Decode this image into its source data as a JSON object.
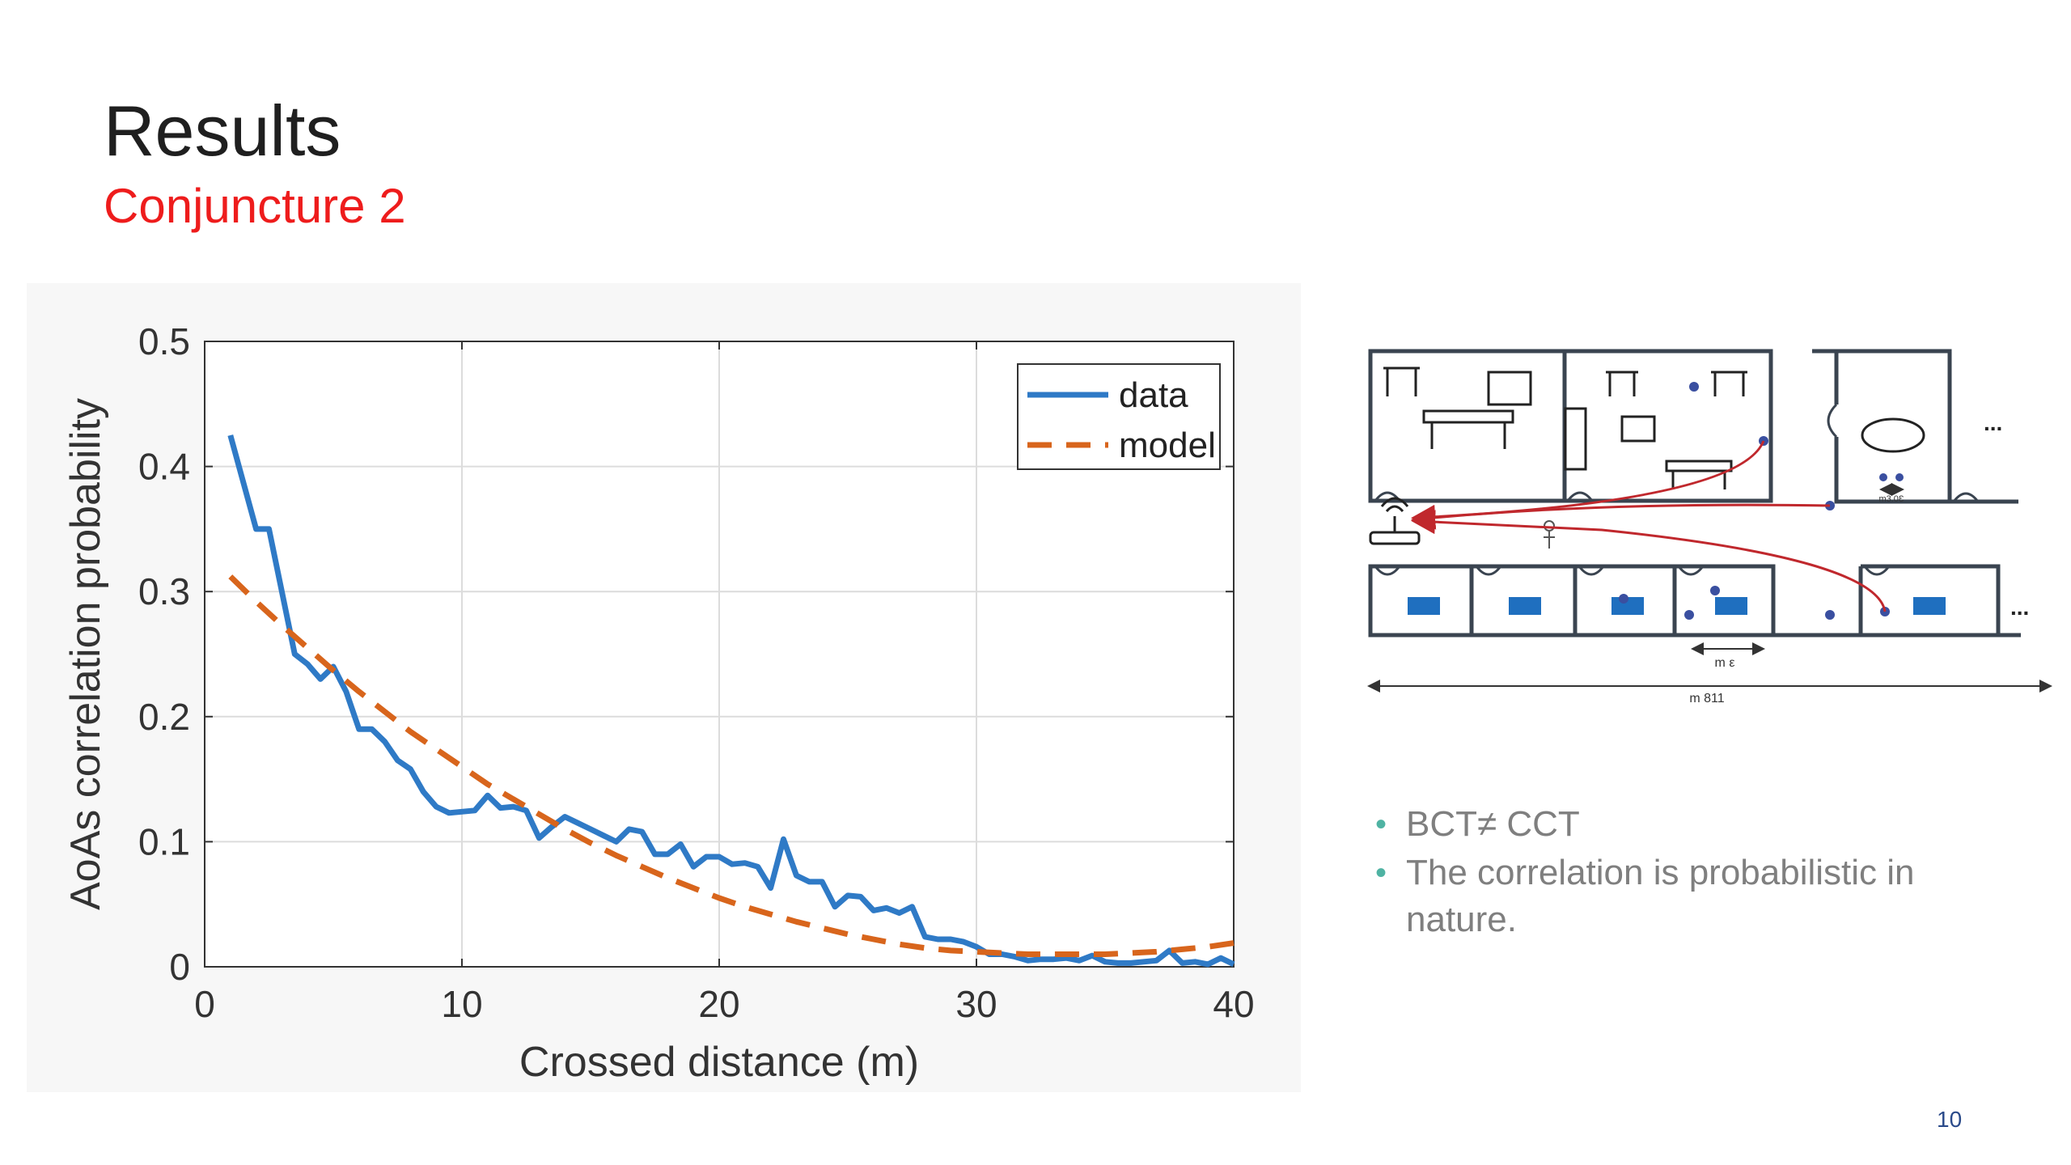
{
  "slide": {
    "title": "Results",
    "subtitle": "Conjuncture 2",
    "subtitle_color": "#ee1c1c",
    "page_number": "10",
    "page_number_color": "#2a4a8a"
  },
  "bullets": [
    "BCT≠ CCT",
    "The correlation is probabilistic in nature."
  ],
  "bullet_color": "#4fb3a3",
  "diagram": {
    "dim_small": "m ε",
    "dim_total": "m 811",
    "dim_room": "m3.0Ɛ",
    "ellipsis_top": "...",
    "ellipsis_bottom": "..."
  },
  "chart_data": {
    "type": "line",
    "xlabel": "Crossed distance (m)",
    "ylabel": "AoAs correlation probability",
    "xlim": [
      0,
      40
    ],
    "ylim": [
      0,
      0.5
    ],
    "xticks": [
      "0",
      "10",
      "20",
      "30",
      "40"
    ],
    "yticks": [
      "0",
      "0.1",
      "0.2",
      "0.3",
      "0.4",
      "0.5"
    ],
    "grid": true,
    "legend_position": "top-right",
    "series": [
      {
        "name": "data",
        "color": "#2f7ac6",
        "style": "solid",
        "x": [
          1,
          2,
          2.5,
          3,
          3.5,
          4,
          4.5,
          5,
          5.5,
          6,
          6.5,
          7,
          7.5,
          8,
          8.5,
          9,
          9.5,
          10,
          10.5,
          11,
          11.5,
          12,
          12.5,
          13,
          13.5,
          14,
          14.5,
          15,
          15.5,
          16,
          16.5,
          17,
          17.5,
          18,
          18.5,
          19,
          19.5,
          20,
          20.5,
          21,
          21.5,
          22,
          22.5,
          23,
          23.5,
          24,
          24.5,
          25,
          25.5,
          26,
          26.5,
          27,
          27.5,
          28,
          28.5,
          29,
          29.5,
          30,
          30.5,
          31,
          31.5,
          32,
          32.5,
          33,
          33.5,
          34,
          34.5,
          35,
          35.5,
          36,
          36.5,
          37,
          37.5,
          38,
          38.5,
          39,
          39.5,
          40
        ],
        "y": [
          0.425,
          0.35,
          0.35,
          0.3,
          0.25,
          0.242,
          0.23,
          0.24,
          0.22,
          0.19,
          0.19,
          0.18,
          0.165,
          0.158,
          0.14,
          0.128,
          0.123,
          0.124,
          0.125,
          0.137,
          0.127,
          0.128,
          0.125,
          0.103,
          0.112,
          0.12,
          0.115,
          0.11,
          0.105,
          0.1,
          0.11,
          0.108,
          0.09,
          0.09,
          0.098,
          0.08,
          0.088,
          0.088,
          0.082,
          0.083,
          0.08,
          0.063,
          0.102,
          0.073,
          0.068,
          0.068,
          0.048,
          0.057,
          0.056,
          0.045,
          0.047,
          0.043,
          0.048,
          0.024,
          0.022,
          0.022,
          0.02,
          0.016,
          0.01,
          0.01,
          0.008,
          0.005,
          0.006,
          0.006,
          0.007,
          0.005,
          0.009,
          0.004,
          0.003,
          0.003,
          0.004,
          0.005,
          0.013,
          0.003,
          0.004,
          0.002,
          0.007,
          0.002
        ],
        "y_note_unused": null
      },
      {
        "name": "model",
        "color": "#d8651c",
        "style": "dashed",
        "x": [
          1,
          2,
          3,
          4,
          5,
          6,
          7,
          8,
          9,
          10,
          11,
          12,
          13,
          14,
          15,
          16,
          17,
          18,
          19,
          20,
          21,
          22,
          23,
          24,
          25,
          26,
          27,
          28,
          29,
          30,
          31,
          32,
          33,
          34,
          35,
          36,
          37,
          38,
          39,
          40
        ],
        "y": [
          0.312,
          0.292,
          0.273,
          0.255,
          0.237,
          0.22,
          0.204,
          0.188,
          0.174,
          0.16,
          0.146,
          0.134,
          0.122,
          0.11,
          0.099,
          0.089,
          0.08,
          0.071,
          0.063,
          0.055,
          0.048,
          0.042,
          0.036,
          0.031,
          0.026,
          0.022,
          0.018,
          0.015,
          0.013,
          0.012,
          0.011,
          0.01,
          0.01,
          0.01,
          0.01,
          0.011,
          0.012,
          0.014,
          0.016,
          0.019
        ]
      }
    ]
  }
}
